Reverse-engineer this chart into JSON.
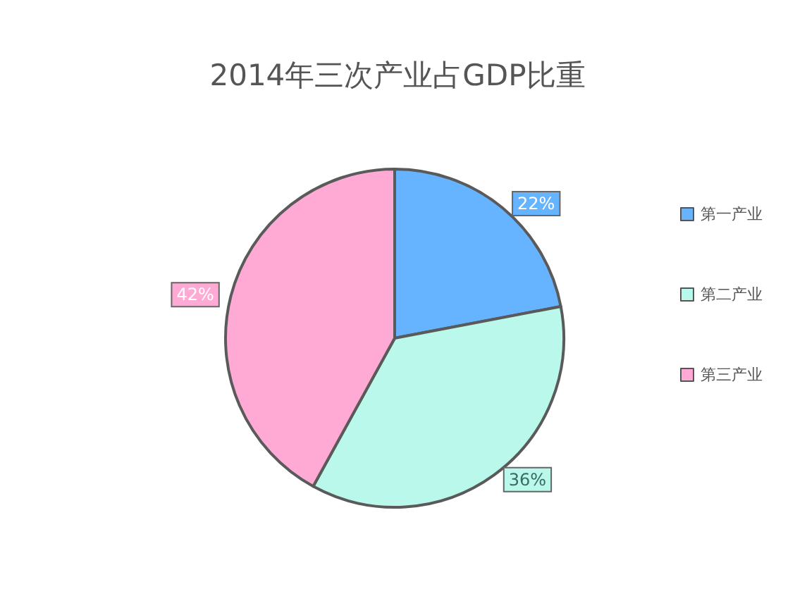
{
  "chart_data": {
    "type": "pie",
    "title": "2014年三次产业占GDP比重",
    "categories": [
      "第一产业",
      "第二产业",
      "第三产业"
    ],
    "values": [
      22,
      36,
      42
    ],
    "value_labels": [
      "22%",
      "36%",
      "42%"
    ],
    "colors": [
      "#66b3ff",
      "#b9f8ea",
      "#ffaad5"
    ],
    "legend": "right"
  }
}
